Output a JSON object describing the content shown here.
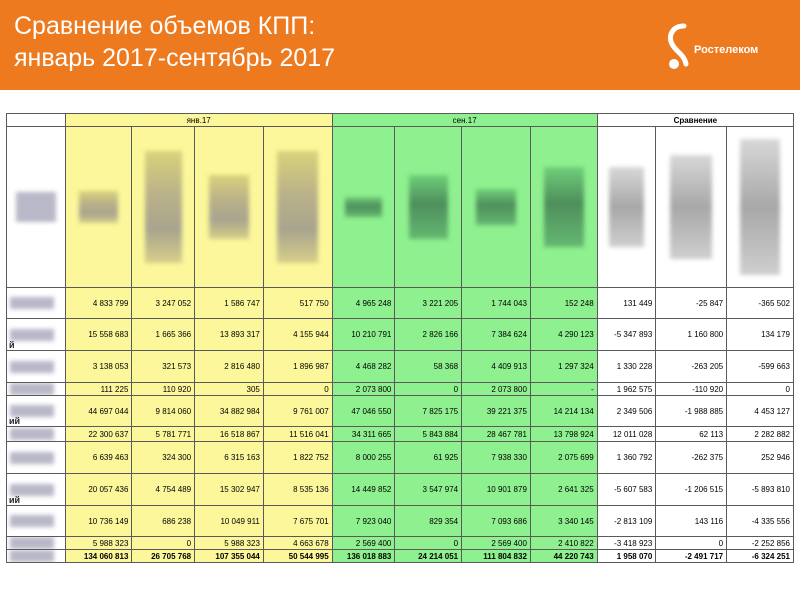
{
  "header": {
    "title_line1": "Сравнение объемов КПП:",
    "title_line2": "январь 2017-сентябрь 2017",
    "logo_text": "Ростелеком",
    "brand_color": "#ee7a1f"
  },
  "table": {
    "group_headers": {
      "jan": "янв.17",
      "sep": "сен.17",
      "compare": "Сравнение"
    },
    "colors": {
      "jan": "#fbf79a",
      "sep": "#8ef08e"
    },
    "rows": [
      {
        "suffix": "",
        "values": [
          "4 833 799",
          "3 247 052",
          "1 586 747",
          "517 750",
          "4 965 248",
          "3 221 205",
          "1 744 043",
          "152 248",
          "131 449",
          "-25 847",
          "-365 502"
        ]
      },
      {
        "suffix": "й",
        "values": [
          "15 558 683",
          "1 665 366",
          "13 893 317",
          "4 155 944",
          "10 210 791",
          "2 826 166",
          "7 384 624",
          "4 290 123",
          "-5 347 893",
          "1 160 800",
          "134 179"
        ]
      },
      {
        "suffix": "",
        "values": [
          "3 138 053",
          "321 573",
          "2 816 480",
          "1 896 987",
          "4 468 282",
          "58 368",
          "4 409 913",
          "1 297 324",
          "1 330 228",
          "-263 205",
          "-599 663"
        ]
      },
      {
        "suffix": "",
        "values": [
          "111 225",
          "110 920",
          "305",
          "0",
          "2 073 800",
          "0",
          "2 073 800",
          "-",
          "1 962 575",
          "-110 920",
          "0"
        ]
      },
      {
        "suffix": "ий",
        "values": [
          "44 697 044",
          "9 814 060",
          "34 882 984",
          "9 761 007",
          "47 046 550",
          "7 825 175",
          "39 221 375",
          "14 214 134",
          "2 349 506",
          "-1 988 885",
          "4 453 127"
        ]
      },
      {
        "suffix": "",
        "values": [
          "22 300 637",
          "5 781 771",
          "16 518 867",
          "11 516 041",
          "34 311 665",
          "5 843 884",
          "28 467 781",
          "13 798 924",
          "12 011 028",
          "62 113",
          "2 282 882"
        ]
      },
      {
        "suffix": "",
        "values": [
          "6 639 463",
          "324 300",
          "6 315 163",
          "1 822 752",
          "8 000 255",
          "61 925",
          "7 938 330",
          "2 075 699",
          "1 360 792",
          "-262 375",
          "252 946"
        ]
      },
      {
        "suffix": "ий",
        "values": [
          "20 057 436",
          "4 754 489",
          "15 302 947",
          "8 535 136",
          "14 449 852",
          "3 547 974",
          "10 901 879",
          "2 641 325",
          "-5 607 583",
          "-1 206 515",
          "-5 893 810"
        ]
      },
      {
        "suffix": "",
        "values": [
          "10 736 149",
          "686 238",
          "10 049 911",
          "7 675 701",
          "7 923 040",
          "829 354",
          "7 093 686",
          "3 340 145",
          "-2 813 109",
          "143 116",
          "-4 335 556"
        ]
      },
      {
        "suffix": "",
        "values": [
          "5 988 323",
          "0",
          "5 988 323",
          "4 663 678",
          "2 569 400",
          "0",
          "2 569 400",
          "2 410 822",
          "-3 418 923",
          "0",
          "-2 252 856"
        ]
      }
    ],
    "total": {
      "values": [
        "134 060 813",
        "26 705 768",
        "107 355 044",
        "50 544 995",
        "136 018 883",
        "24 214 051",
        "111 804 832",
        "44 220 743",
        "1 958 070",
        "-2 491 717",
        "-6 324 251"
      ]
    }
  }
}
